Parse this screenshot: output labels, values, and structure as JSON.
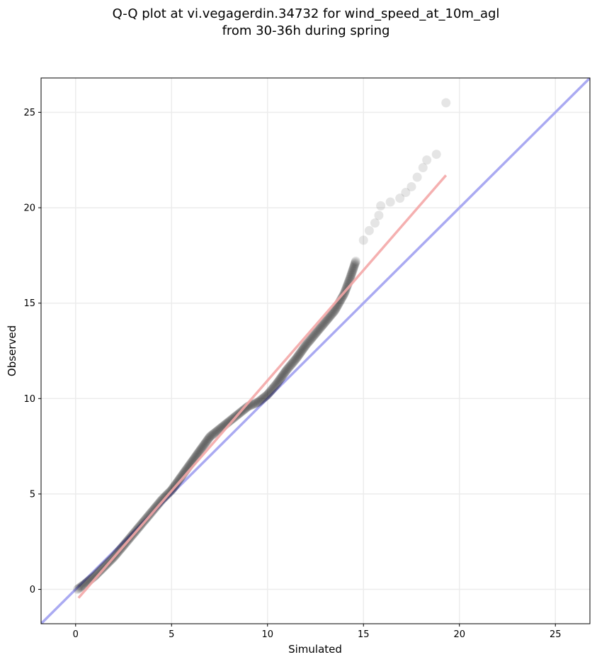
{
  "chart_data": {
    "type": "scatter",
    "title_lines": [
      "Q-Q plot at vi.vegagerdin.34732 for wind_speed_at_10m_agl",
      "from 30-36h during spring"
    ],
    "xlabel": "Simulated",
    "ylabel": "Observed",
    "xlim": [
      -1.8,
      26.8
    ],
    "ylim": [
      -1.8,
      26.8
    ],
    "xticks": [
      0,
      5,
      10,
      15,
      20,
      25
    ],
    "yticks": [
      0,
      5,
      10,
      15,
      20,
      25
    ],
    "grid": true,
    "reference_line": {
      "color": "#aaaaf2",
      "points": [
        [
          -1.8,
          -1.8
        ],
        [
          26.8,
          26.8
        ]
      ]
    },
    "fit_line": {
      "color": "#f4a7a7",
      "points": [
        [
          0.15,
          -0.45
        ],
        [
          19.3,
          21.7
        ]
      ]
    },
    "point_color": "#000000",
    "qq_anchors": [
      [
        0.1,
        0.0
      ],
      [
        0.5,
        0.3
      ],
      [
        1.0,
        0.7
      ],
      [
        1.5,
        1.2
      ],
      [
        2.0,
        1.7
      ],
      [
        2.5,
        2.3
      ],
      [
        3.0,
        2.9
      ],
      [
        3.5,
        3.5
      ],
      [
        4.0,
        4.1
      ],
      [
        4.5,
        4.7
      ],
      [
        5.0,
        5.2
      ],
      [
        5.5,
        5.9
      ],
      [
        6.0,
        6.6
      ],
      [
        6.5,
        7.3
      ],
      [
        7.0,
        8.0
      ],
      [
        7.5,
        8.4
      ],
      [
        8.0,
        8.8
      ],
      [
        8.5,
        9.2
      ],
      [
        9.0,
        9.6
      ],
      [
        9.5,
        9.8
      ],
      [
        10.0,
        10.2
      ],
      [
        10.5,
        10.8
      ],
      [
        11.0,
        11.5
      ],
      [
        11.5,
        12.1
      ],
      [
        12.0,
        12.8
      ],
      [
        12.5,
        13.4
      ],
      [
        13.0,
        14.0
      ],
      [
        13.5,
        14.6
      ],
      [
        14.0,
        15.5
      ],
      [
        14.3,
        16.3
      ],
      [
        14.6,
        17.2
      ],
      [
        15.0,
        18.3
      ],
      [
        15.3,
        18.8
      ],
      [
        15.6,
        19.2
      ],
      [
        15.8,
        19.6
      ],
      [
        15.9,
        20.1
      ],
      [
        16.4,
        20.3
      ],
      [
        16.9,
        20.5
      ],
      [
        17.2,
        20.8
      ],
      [
        17.5,
        21.1
      ],
      [
        17.8,
        21.6
      ],
      [
        18.1,
        22.1
      ],
      [
        18.3,
        22.5
      ],
      [
        18.8,
        22.8
      ],
      [
        19.3,
        25.5
      ]
    ]
  }
}
